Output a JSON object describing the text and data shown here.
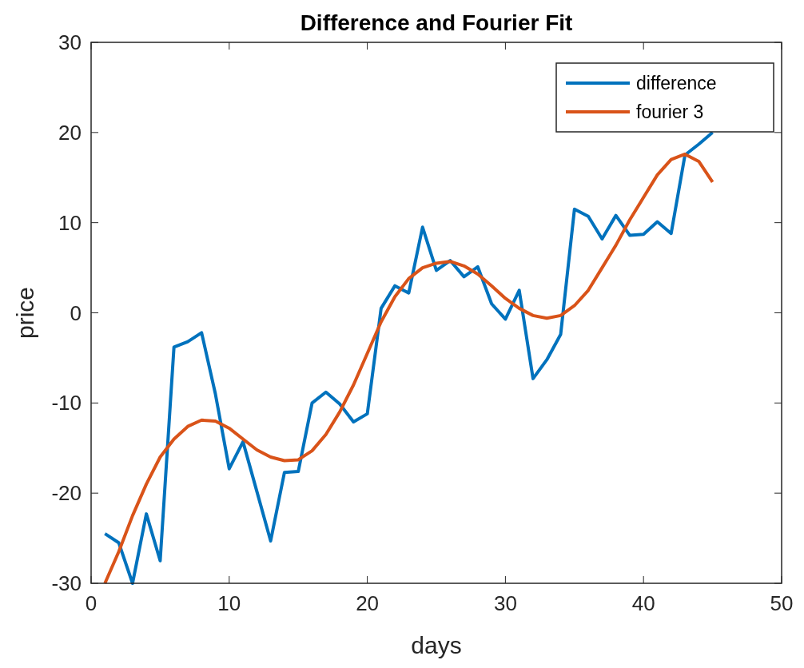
{
  "chart_data": {
    "type": "line",
    "title": "Difference and Fourier Fit",
    "xlabel": "days",
    "ylabel": "price",
    "x": [
      1,
      2,
      3,
      4,
      5,
      6,
      7,
      8,
      9,
      10,
      11,
      12,
      13,
      14,
      15,
      16,
      17,
      18,
      19,
      20,
      21,
      22,
      23,
      24,
      25,
      26,
      27,
      28,
      29,
      30,
      31,
      32,
      33,
      34,
      35,
      36,
      37,
      38,
      39,
      40,
      41,
      42,
      43,
      44,
      45
    ],
    "series": [
      {
        "name": "difference",
        "color": "#0072bd",
        "values": [
          -24.5,
          -25.5,
          -30,
          -22.3,
          -27.5,
          -3.8,
          -3.2,
          -2.2,
          -9,
          -17.3,
          -14.3,
          -19.8,
          -25.3,
          -17.7,
          -17.6,
          -10,
          -8.8,
          -10.1,
          -12.1,
          -11.2,
          0.5,
          3,
          2.2,
          9.5,
          4.7,
          5.8,
          4,
          5.1,
          1,
          -0.7,
          2.5,
          -7.3,
          -5.2,
          -2.4,
          11.5,
          10.7,
          8.2,
          10.8,
          8.6,
          8.7,
          10.1,
          8.8,
          17.5,
          18.7,
          20
        ]
      },
      {
        "name": "fourier 3",
        "color": "#d95319",
        "values": [
          -30,
          -26.5,
          -22.5,
          -19,
          -16,
          -14,
          -12.6,
          -11.9,
          -12,
          -12.8,
          -14,
          -15.2,
          -16,
          -16.4,
          -16.3,
          -15.3,
          -13.5,
          -11,
          -8,
          -4.5,
          -1,
          1.8,
          3.8,
          5,
          5.5,
          5.7,
          5.2,
          4.3,
          3,
          1.6,
          0.5,
          -0.3,
          -0.6,
          -0.3,
          0.8,
          2.5,
          5,
          7.5,
          10.3,
          12.8,
          15.3,
          17,
          17.6,
          16.8,
          14.5
        ]
      }
    ],
    "xlim": [
      0,
      50
    ],
    "xticks": [
      0,
      10,
      20,
      30,
      40,
      50
    ],
    "ylim": [
      -30,
      30
    ],
    "yticks": [
      -30,
      -20,
      -10,
      0,
      10,
      20,
      30
    ],
    "grid": false,
    "legend": "top right",
    "line_style": "solid"
  }
}
